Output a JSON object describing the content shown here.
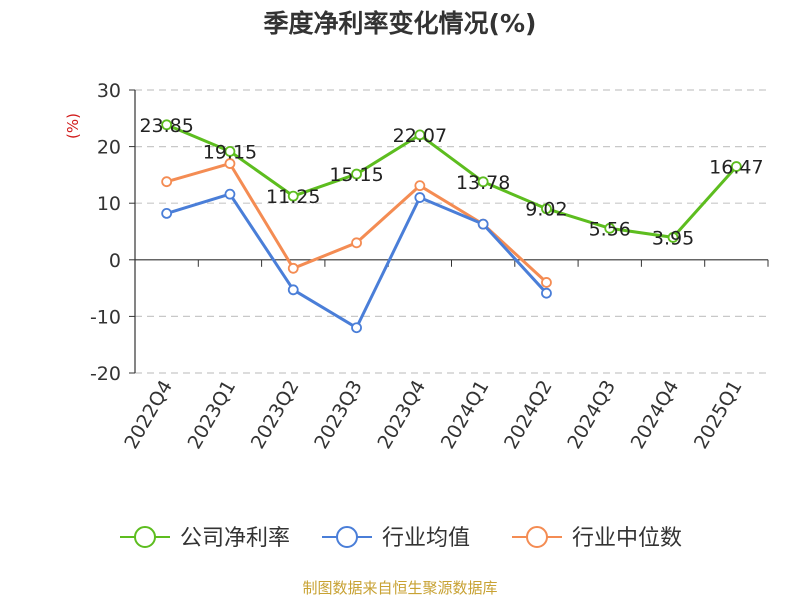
{
  "chart_data": {
    "type": "line",
    "title": "季度净利率变化情况(%)",
    "ylabel": "(%)",
    "categories": [
      "2022Q4",
      "2023Q1",
      "2023Q2",
      "2023Q3",
      "2023Q4",
      "2024Q1",
      "2024Q2",
      "2024Q3",
      "2024Q4",
      "2025Q1"
    ],
    "ylim": [
      -20,
      30
    ],
    "yticks": [
      30,
      20,
      10,
      0,
      -10,
      -20
    ],
    "grid": true,
    "legend_position": "bottom",
    "series": [
      {
        "name": "公司净利率",
        "color": "#5dbd1f",
        "values": [
          23.85,
          19.15,
          11.25,
          15.15,
          22.07,
          13.78,
          9.02,
          5.56,
          3.95,
          16.47
        ],
        "labels": [
          "23.85",
          "19.15",
          "11.25",
          "15.15",
          "22.07",
          "13.78",
          "9.02",
          "5.56",
          "3.95",
          "16.47"
        ]
      },
      {
        "name": "行业均值",
        "color": "#4a7ed8",
        "values": [
          8.2,
          11.6,
          -5.3,
          -12.0,
          11.0,
          6.3,
          -5.9,
          null,
          null,
          null
        ]
      },
      {
        "name": "行业中位数",
        "color": "#f48c53",
        "values": [
          13.8,
          17.0,
          -1.5,
          3.0,
          13.1,
          6.3,
          -4.0,
          null,
          null,
          null
        ]
      }
    ]
  },
  "colors": {
    "axis": "#333333",
    "grid": "#c8c8c8",
    "unit_label": "#d11b1b",
    "source": "#c8a233"
  },
  "source_note": "制图数据来自恒生聚源数据库"
}
